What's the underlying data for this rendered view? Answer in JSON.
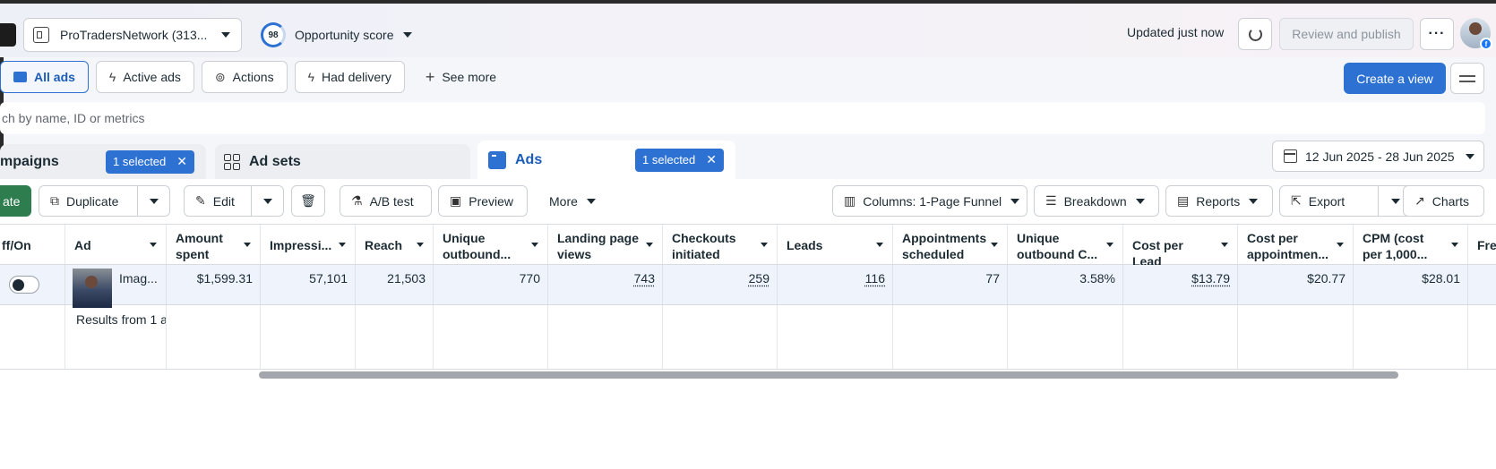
{
  "header": {
    "account_name": "ProTradersNetwork (313...",
    "opportunity_score": "98",
    "opportunity_label": "Opportunity score",
    "updated_text": "Updated just now",
    "review_publish_label": "Review and publish",
    "more_label": "···"
  },
  "filters": {
    "items": [
      {
        "label": "All ads",
        "icon": "folder-icon",
        "active": true
      },
      {
        "label": "Active ads",
        "icon": "lightning-icon"
      },
      {
        "label": "Actions",
        "icon": "circle-arrow-icon"
      },
      {
        "label": "Had delivery",
        "icon": "lightning-icon"
      },
      {
        "label": "See more",
        "icon": "plus-icon"
      }
    ],
    "create_view_label": "Create a view"
  },
  "search": {
    "placeholder": "ch by name, ID or metrics"
  },
  "tabs": {
    "campaigns_label": "mpaigns",
    "campaigns_selected": "1 selected",
    "adsets_label": "Ad sets",
    "ads_label": "Ads",
    "ads_selected": "1 selected"
  },
  "date_range": "12 Jun 2025 - 28 Jun 2025",
  "toolbar": {
    "create_label": "ate",
    "duplicate_label": "Duplicate",
    "edit_label": "Edit",
    "ab_test_label": "A/B test",
    "preview_label": "Preview",
    "more_label": "More",
    "columns_label": "Columns: 1-Page Funnel",
    "breakdown_label": "Breakdown",
    "reports_label": "Reports",
    "export_label": "Export",
    "charts_label": "Charts"
  },
  "table": {
    "columns": [
      {
        "label": "ff/On"
      },
      {
        "label": "Ad"
      },
      {
        "label": "Amount spent"
      },
      {
        "label": "Impressi..."
      },
      {
        "label": "Reach"
      },
      {
        "label": "Unique outbound..."
      },
      {
        "label": "Landing page views"
      },
      {
        "label": "Checkouts initiated"
      },
      {
        "label": "Leads"
      },
      {
        "label": "Appointments scheduled"
      },
      {
        "label": "Unique outbound C..."
      },
      {
        "label": "Cost per Lead"
      },
      {
        "label": "Cost per appointmen..."
      },
      {
        "label": "CPM (cost per 1,000..."
      },
      {
        "label": "Fre"
      }
    ],
    "row": {
      "ad_name": "Imag...",
      "values": [
        "$1,599.31",
        "57,101",
        "21,503",
        "770",
        "743",
        "259",
        "116",
        "77",
        "3.58%",
        "$13.79",
        "$20.77",
        "$28.01"
      ]
    },
    "results_text": "Results from 1 a"
  },
  "colors": {
    "accent": "#2d72d2",
    "create_green": "#2e7d4f",
    "row_highlight": "#eef3fc"
  }
}
